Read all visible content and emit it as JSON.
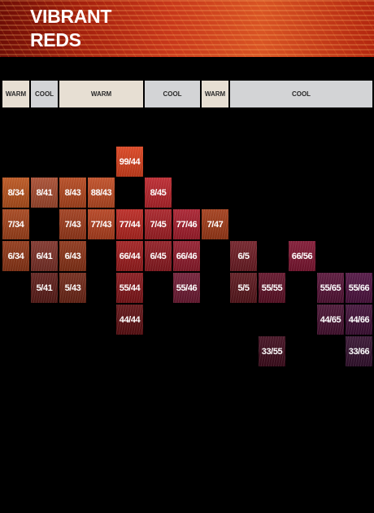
{
  "title": [
    "VIBRANT",
    "REDS"
  ],
  "tone_headers": [
    {
      "label": "WARM",
      "kind": "warm",
      "col": 0,
      "span": 1
    },
    {
      "label": "COOL",
      "kind": "cool",
      "col": 1,
      "span": 1
    },
    {
      "label": "WARM",
      "kind": "warm",
      "col": 2,
      "span": 3
    },
    {
      "label": "COOL",
      "kind": "cool",
      "col": 5,
      "span": 2
    },
    {
      "label": "WARM",
      "kind": "warm",
      "col": 7,
      "span": 1
    },
    {
      "label": "COOL",
      "kind": "cool",
      "col": 8,
      "span": 5
    }
  ],
  "swatches": [
    {
      "label": "99/44",
      "row": 0,
      "col": 4,
      "color": "#d8401c"
    },
    {
      "label": "8/34",
      "row": 1,
      "col": 0,
      "color": "#b8521c"
    },
    {
      "label": "8/41",
      "row": 1,
      "col": 1,
      "color": "#a54a2e"
    },
    {
      "label": "8/43",
      "row": 1,
      "col": 2,
      "color": "#b2461d"
    },
    {
      "label": "88/43",
      "row": 1,
      "col": 3,
      "color": "#bd4a22"
    },
    {
      "label": "8/45",
      "row": 1,
      "col": 5,
      "color": "#b9242b"
    },
    {
      "label": "7/34",
      "row": 2,
      "col": 0,
      "color": "#a3421a"
    },
    {
      "label": "7/43",
      "row": 2,
      "col": 2,
      "color": "#9d3a1a"
    },
    {
      "label": "77/43",
      "row": 2,
      "col": 3,
      "color": "#b3401e"
    },
    {
      "label": "77/44",
      "row": 2,
      "col": 4,
      "color": "#b82620"
    },
    {
      "label": "7/45",
      "row": 2,
      "col": 5,
      "color": "#a51f25"
    },
    {
      "label": "77/46",
      "row": 2,
      "col": 6,
      "color": "#a61d2c"
    },
    {
      "label": "7/47",
      "row": 2,
      "col": 7,
      "color": "#a03a17"
    },
    {
      "label": "6/34",
      "row": 3,
      "col": 0,
      "color": "#8e3515"
    },
    {
      "label": "6/41",
      "row": 3,
      "col": 1,
      "color": "#7c3027"
    },
    {
      "label": "6/43",
      "row": 3,
      "col": 2,
      "color": "#8a3216"
    },
    {
      "label": "66/44",
      "row": 3,
      "col": 4,
      "color": "#9e1c1d"
    },
    {
      "label": "6/45",
      "row": 3,
      "col": 5,
      "color": "#8d1920"
    },
    {
      "label": "66/46",
      "row": 3,
      "col": 6,
      "color": "#901a2b"
    },
    {
      "label": "6/5",
      "row": 3,
      "col": 8,
      "color": "#6e1c24"
    },
    {
      "label": "66/56",
      "row": 3,
      "col": 10,
      "color": "#7d1430"
    },
    {
      "label": "5/41",
      "row": 4,
      "col": 1,
      "color": "#5c1c18"
    },
    {
      "label": "5/43",
      "row": 4,
      "col": 2,
      "color": "#6e2616"
    },
    {
      "label": "55/44",
      "row": 4,
      "col": 4,
      "color": "#831519"
    },
    {
      "label": "55/46",
      "row": 4,
      "col": 6,
      "color": "#6e1a33"
    },
    {
      "label": "5/5",
      "row": 4,
      "col": 8,
      "color": "#5a161c"
    },
    {
      "label": "55/55",
      "row": 4,
      "col": 9,
      "color": "#5e1026"
    },
    {
      "label": "55/65",
      "row": 4,
      "col": 11,
      "color": "#551236"
    },
    {
      "label": "55/66",
      "row": 4,
      "col": 12,
      "color": "#4e1240"
    },
    {
      "label": "44/44",
      "row": 5,
      "col": 4,
      "color": "#5e0f12"
    },
    {
      "label": "44/65",
      "row": 5,
      "col": 11,
      "color": "#461030"
    },
    {
      "label": "44/66",
      "row": 5,
      "col": 12,
      "color": "#3f0f36"
    },
    {
      "label": "33/55",
      "row": 6,
      "col": 9,
      "color": "#3e0b1c"
    },
    {
      "label": "33/66",
      "row": 6,
      "col": 12,
      "color": "#33102e"
    }
  ]
}
